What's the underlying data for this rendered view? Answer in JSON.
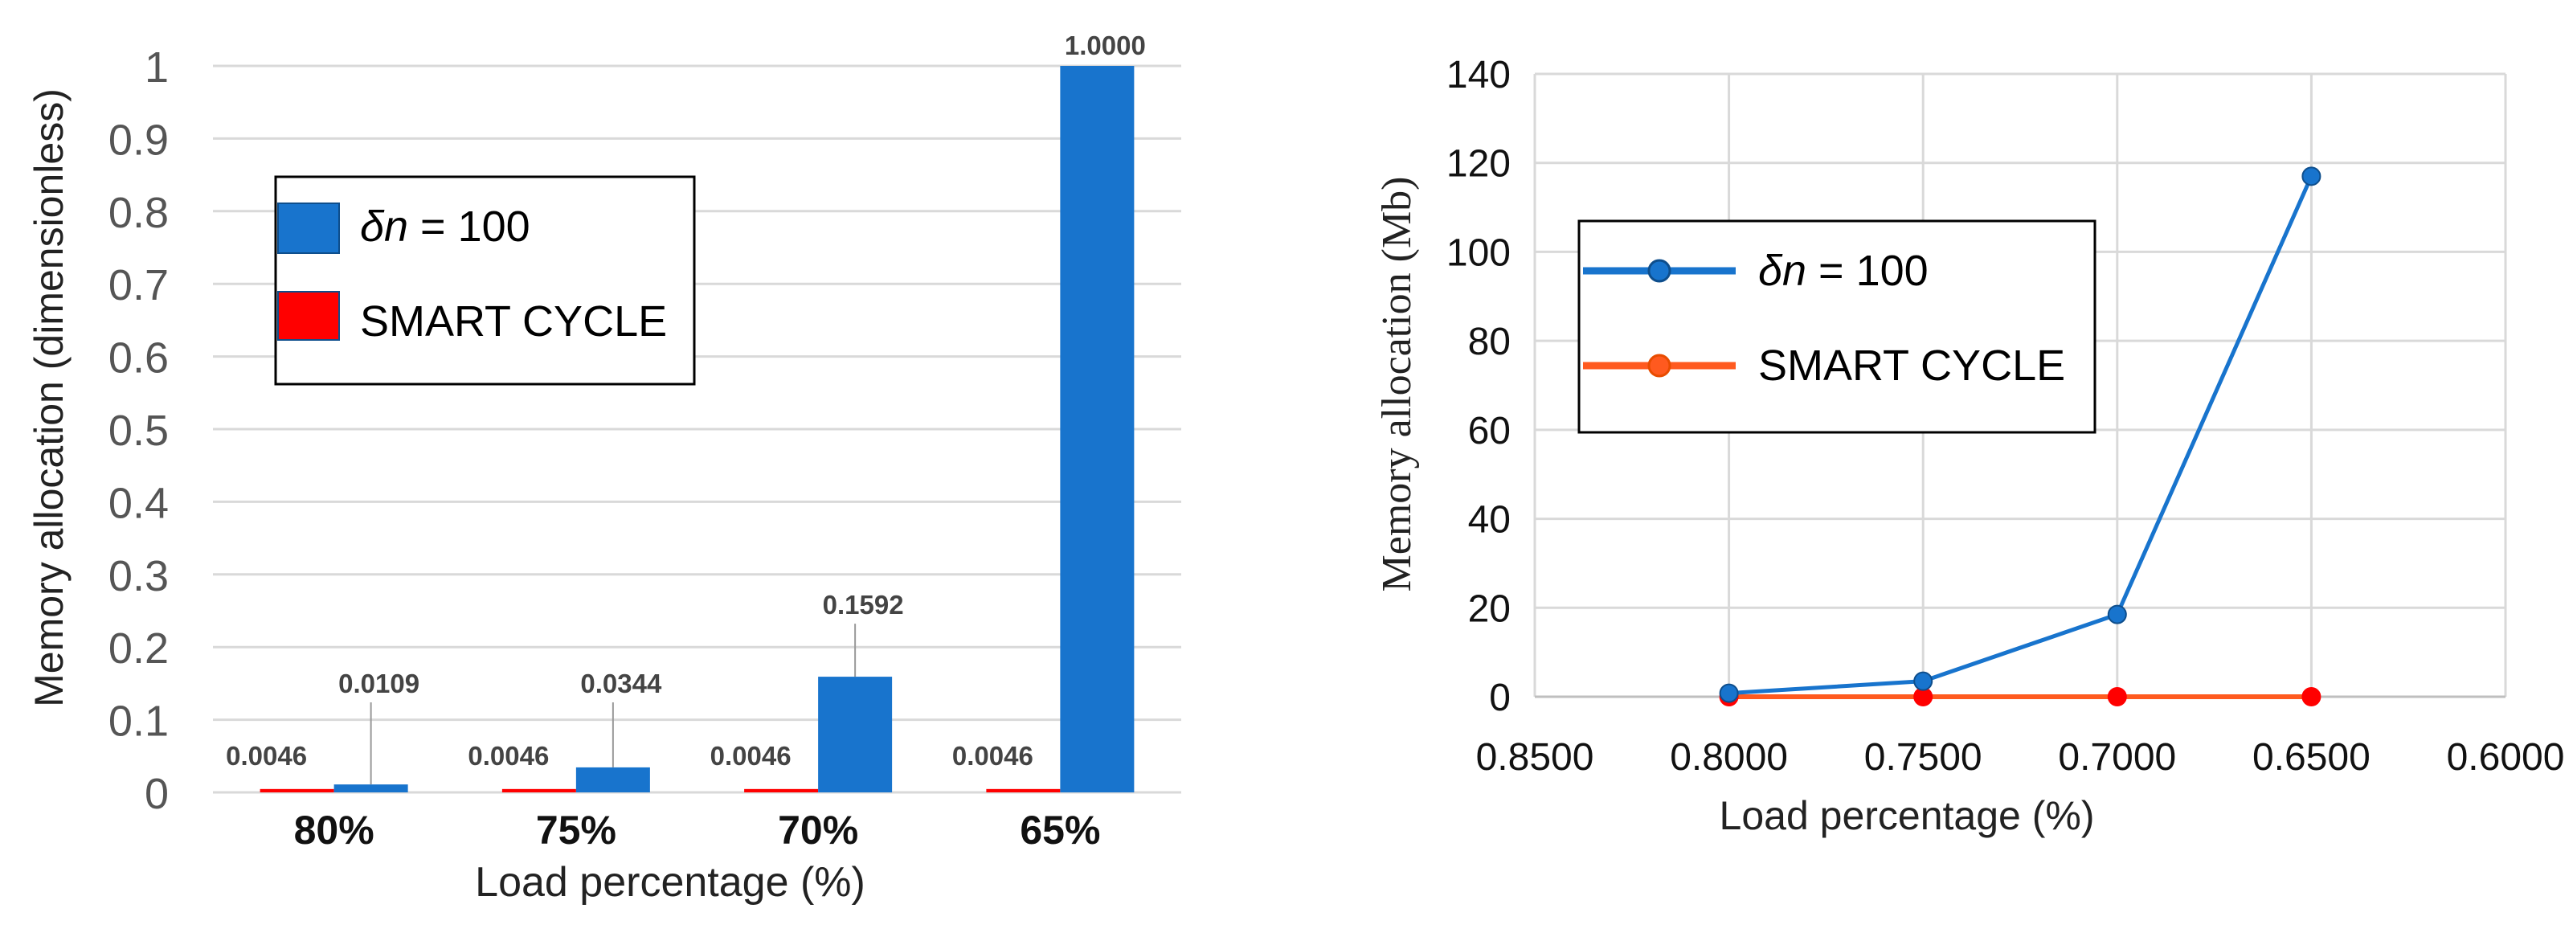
{
  "chart_data": [
    {
      "type": "bar",
      "categories": [
        "80%",
        "75%",
        "70%",
        "65%"
      ],
      "series": [
        {
          "name_sym": "δn",
          "name_rest": " = 100",
          "color": "#1874CD",
          "values": [
            0.0109,
            0.0344,
            0.1592,
            1.0
          ],
          "labels": [
            "0.0109",
            "0.0344",
            "0.1592",
            "1.0000"
          ]
        },
        {
          "name": "SMART CYCLE",
          "color": "#FF0000",
          "values": [
            0.0046,
            0.0046,
            0.0046,
            0.0046
          ],
          "labels": [
            "0.0046",
            "0.0046",
            "0.0046",
            "0.0046"
          ]
        }
      ],
      "xlabel": "Load percentage (%)",
      "ylabel": "Memory allocation (dimensionless)",
      "ylim": [
        0,
        1
      ],
      "yticks": [
        "0",
        "0.1",
        "0.2",
        "0.3",
        "0.4",
        "0.5",
        "0.6",
        "0.7",
        "0.8",
        "0.9",
        "1"
      ],
      "grid": true,
      "legend": "top-left"
    },
    {
      "type": "line",
      "x": [
        0.8,
        0.75,
        0.7,
        0.65
      ],
      "series": [
        {
          "name_sym": "δn",
          "name_rest": " = 100",
          "color": "#1874CD",
          "values": [
            0.8,
            3.5,
            18.5,
            117
          ]
        },
        {
          "name": "SMART CYCLE",
          "color": "#FF5A1F",
          "marker_color": "#FF0000",
          "values": [
            0,
            0,
            0,
            0
          ]
        }
      ],
      "xlabel": "Load percentage (%)",
      "ylabel": "Memory allocation (Mb)",
      "xlim": [
        0.85,
        0.6
      ],
      "ylim": [
        0,
        140
      ],
      "xticks": [
        "0.8500",
        "0.8000",
        "0.7500",
        "0.7000",
        "0.6500",
        "0.6000"
      ],
      "yticks": [
        "0",
        "20",
        "40",
        "60",
        "80",
        "100",
        "120",
        "140"
      ],
      "grid": true,
      "legend": "top-left"
    }
  ]
}
